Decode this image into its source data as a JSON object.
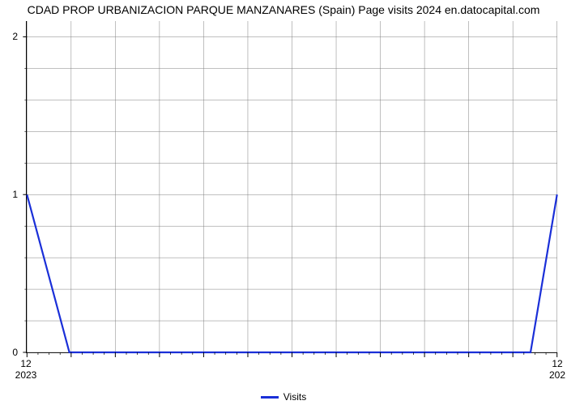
{
  "chart": {
    "type": "line",
    "title": "CDAD PROP URBANIZACION PARQUE MANZANARES (Spain) Page visits 2024 en.datocapital.com",
    "title_fontsize": 14,
    "series_name": "Visits",
    "series_color": "#1a2fd8",
    "line_width": 2.2,
    "background_color": "#ffffff",
    "grid_color": "#7f7f7f",
    "grid_width": 0.5,
    "minor_tick_color": "#000000",
    "y": {
      "min": 0,
      "max": 2.1,
      "major_ticks": [
        0,
        1,
        2
      ],
      "minor_ticks_between": 4,
      "label_fontsize": 12
    },
    "x": {
      "n_intervals": 12,
      "labels_top": [
        "12",
        "12"
      ],
      "labels_bottom": [
        "2023",
        "202"
      ],
      "major_tick_len": 6,
      "minor_tick_len": 3,
      "n_minor_per_interval": 3
    },
    "data_points": [
      {
        "x": 0.0,
        "y": 1.0
      },
      {
        "x": 0.08,
        "y": 0.0
      },
      {
        "x": 0.95,
        "y": 0.0
      },
      {
        "x": 1.0,
        "y": 1.0
      }
    ]
  },
  "legend": {
    "label": "Visits"
  }
}
